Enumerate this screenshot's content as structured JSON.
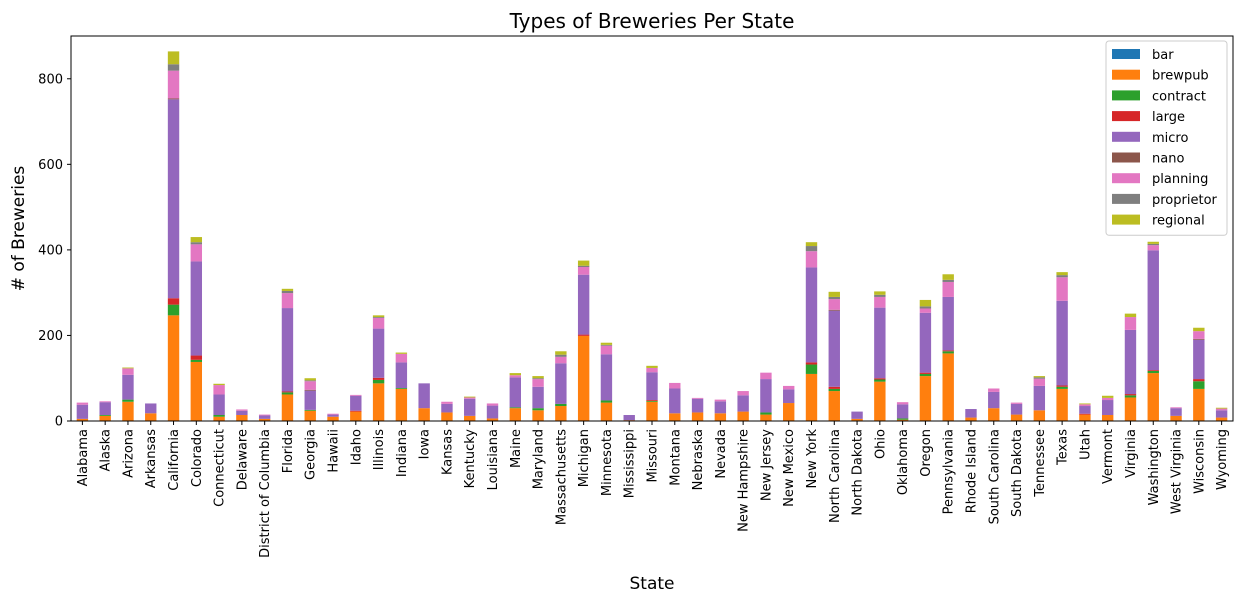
{
  "chart_data": {
    "type": "bar",
    "stacked": true,
    "title": "Types of Breweries Per State",
    "xlabel": "State",
    "ylabel": "# of Breweries",
    "ylim": [
      0,
      900
    ],
    "yticks": [
      0,
      200,
      400,
      600,
      800
    ],
    "grid": false,
    "legend": "top-right",
    "categories": [
      "Alabama",
      "Alaska",
      "Arizona",
      "Arkansas",
      "California",
      "Colorado",
      "Connecticut",
      "Delaware",
      "District of Columbia",
      "Florida",
      "Georgia",
      "Hawaii",
      "Idaho",
      "Illinois",
      "Indiana",
      "Iowa",
      "Kansas",
      "Kentucky",
      "Louisiana",
      "Maine",
      "Maryland",
      "Massachusetts",
      "Michigan",
      "Minnesota",
      "Mississippi",
      "Missouri",
      "Montana",
      "Nebraska",
      "Nevada",
      "New Hampshire",
      "New Jersey",
      "New Mexico",
      "New York",
      "North Carolina",
      "North Dakota",
      "Ohio",
      "Oklahoma",
      "Oregon",
      "Pennsylvania",
      "Rhode Island",
      "South Carolina",
      "South Dakota",
      "Tennessee",
      "Texas",
      "Utah",
      "Vermont",
      "Virginia",
      "Washington",
      "West Virginia",
      "Wisconsin",
      "Wyoming"
    ],
    "series": [
      {
        "name": "bar",
        "color": "#1f77b4",
        "values": [
          0,
          0,
          0,
          0,
          0,
          0,
          0,
          0,
          0,
          0,
          0,
          0,
          0,
          0,
          0,
          0,
          0,
          0,
          0,
          0,
          0,
          0,
          1,
          0,
          0,
          0,
          0,
          0,
          0,
          0,
          0,
          0,
          0,
          0,
          0,
          0,
          0,
          0,
          0,
          0,
          0,
          0,
          0,
          0,
          0,
          0,
          0,
          0,
          0,
          0,
          0
        ]
      },
      {
        "name": "brewpub",
        "color": "#ff7f0e",
        "values": [
          5,
          12,
          45,
          18,
          247,
          138,
          10,
          14,
          5,
          62,
          24,
          10,
          22,
          88,
          75,
          30,
          20,
          12,
          6,
          30,
          25,
          35,
          198,
          43,
          2,
          45,
          18,
          20,
          18,
          22,
          15,
          42,
          110,
          70,
          5,
          92,
          3,
          105,
          158,
          8,
          30,
          15,
          25,
          75,
          15,
          14,
          55,
          112,
          12,
          75,
          8
        ]
      },
      {
        "name": "contract",
        "color": "#2ca02c",
        "values": [
          0,
          2,
          5,
          0,
          25,
          5,
          4,
          0,
          0,
          5,
          2,
          0,
          0,
          8,
          2,
          0,
          0,
          0,
          0,
          2,
          5,
          5,
          0,
          5,
          0,
          2,
          0,
          0,
          0,
          0,
          5,
          0,
          22,
          5,
          0,
          5,
          3,
          5,
          5,
          0,
          0,
          0,
          0,
          5,
          0,
          0,
          5,
          5,
          0,
          18,
          0
        ]
      },
      {
        "name": "large",
        "color": "#d62728",
        "values": [
          0,
          0,
          0,
          0,
          15,
          10,
          0,
          0,
          0,
          2,
          0,
          0,
          2,
          5,
          0,
          0,
          0,
          0,
          0,
          0,
          0,
          0,
          3,
          0,
          0,
          2,
          0,
          0,
          0,
          0,
          0,
          0,
          5,
          5,
          0,
          3,
          0,
          3,
          2,
          0,
          0,
          0,
          0,
          3,
          2,
          0,
          3,
          2,
          0,
          5,
          0
        ]
      },
      {
        "name": "micro",
        "color": "#9467bd",
        "values": [
          33,
          30,
          58,
          23,
          465,
          220,
          48,
          10,
          8,
          195,
          45,
          5,
          35,
          115,
          60,
          58,
          20,
          40,
          30,
          70,
          50,
          95,
          140,
          108,
          12,
          65,
          58,
          32,
          28,
          38,
          78,
          32,
          222,
          178,
          17,
          165,
          33,
          140,
          125,
          20,
          38,
          25,
          57,
          198,
          18,
          35,
          150,
          280,
          18,
          92,
          17
        ]
      },
      {
        "name": "nano",
        "color": "#8c564b",
        "values": [
          0,
          0,
          0,
          0,
          2,
          0,
          0,
          0,
          0,
          0,
          2,
          0,
          0,
          0,
          0,
          0,
          0,
          0,
          0,
          0,
          0,
          0,
          0,
          0,
          0,
          0,
          0,
          0,
          0,
          0,
          0,
          0,
          0,
          2,
          0,
          0,
          0,
          0,
          0,
          0,
          0,
          0,
          0,
          0,
          0,
          0,
          0,
          0,
          0,
          2,
          0
        ]
      },
      {
        "name": "planning",
        "color": "#e377c2",
        "values": [
          5,
          2,
          15,
          0,
          65,
          40,
          22,
          3,
          2,
          35,
          20,
          2,
          2,
          25,
          20,
          0,
          5,
          3,
          5,
          5,
          18,
          15,
          18,
          20,
          0,
          10,
          13,
          2,
          4,
          10,
          15,
          8,
          38,
          25,
          0,
          25,
          5,
          10,
          35,
          0,
          8,
          3,
          17,
          55,
          4,
          5,
          30,
          12,
          2,
          18,
          4
        ]
      },
      {
        "name": "proprietor",
        "color": "#7f7f7f",
        "values": [
          0,
          0,
          0,
          0,
          15,
          5,
          0,
          0,
          0,
          5,
          2,
          0,
          0,
          2,
          0,
          0,
          0,
          0,
          0,
          0,
          2,
          5,
          3,
          2,
          0,
          0,
          0,
          0,
          0,
          0,
          0,
          0,
          12,
          5,
          0,
          5,
          0,
          5,
          5,
          0,
          0,
          0,
          3,
          5,
          0,
          0,
          0,
          3,
          0,
          0,
          0
        ]
      },
      {
        "name": "regional",
        "color": "#bcbd22",
        "values": [
          0,
          0,
          2,
          0,
          30,
          12,
          3,
          0,
          0,
          5,
          5,
          0,
          0,
          4,
          3,
          0,
          0,
          2,
          0,
          5,
          5,
          8,
          12,
          5,
          0,
          5,
          0,
          0,
          0,
          0,
          0,
          0,
          9,
          12,
          0,
          8,
          0,
          15,
          13,
          0,
          0,
          0,
          3,
          7,
          2,
          5,
          8,
          5,
          0,
          8,
          2
        ]
      }
    ]
  }
}
